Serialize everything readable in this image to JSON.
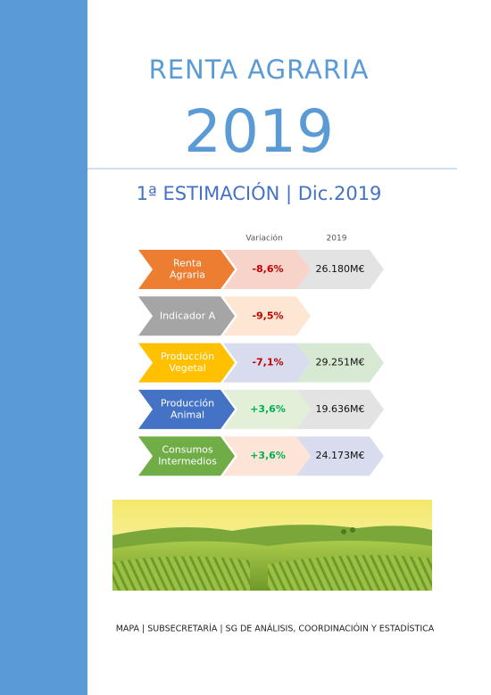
{
  "header": {
    "title": "RENTA AGRARIA",
    "year": "2019",
    "subtitle": "1ª ESTIMACIÓN | Dic.2019"
  },
  "table": {
    "columns": [
      "Variación",
      "2019"
    ],
    "rows": [
      {
        "label": [
          "Renta",
          "Agraria"
        ],
        "variation": "-8,6%",
        "value": "26.180M€"
      },
      {
        "label": [
          "Indicador A"
        ],
        "variation": "-9,5%"
      },
      {
        "label": [
          "Producción",
          "Vegetal"
        ],
        "variation": "-7,1%",
        "value": "29.251M€"
      },
      {
        "label": [
          "Producción",
          "Animal"
        ],
        "variation": "+3,6%",
        "value": "19.636M€"
      },
      {
        "label": [
          "Consumos",
          "Intermedios"
        ],
        "variation": "+3,6%",
        "value": "24.173M€"
      }
    ]
  },
  "footer": "MAPA | SUBSECRETARÍA | SG DE ANÁLISIS, COORDINACIÓIN Y ESTADÍSTICA"
}
